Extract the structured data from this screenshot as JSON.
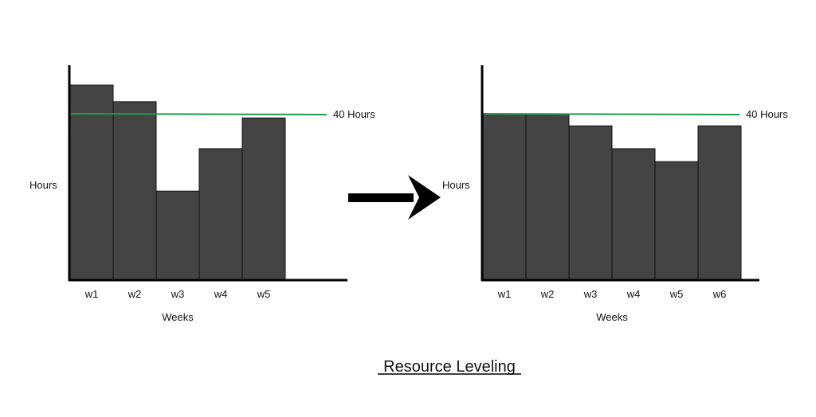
{
  "title": "Resource Leveling",
  "colors": {
    "bar": "#444444",
    "bar_stroke": "#111111",
    "limit_line": "#1f9a4f",
    "axis": "#000000"
  },
  "chart_data": [
    {
      "type": "bar",
      "title": "",
      "xlabel": "Weeks",
      "ylabel": "Hours",
      "categories": [
        "w1",
        "w2",
        "w3",
        "w4",
        "w5"
      ],
      "values": [
        46.9,
        42.9,
        21.4,
        31.6,
        39.0
      ],
      "ylim": [
        0,
        51
      ],
      "reference_line": {
        "value": 40,
        "label": "40 Hours"
      },
      "grid": false
    },
    {
      "type": "bar",
      "title": "",
      "xlabel": "Weeks",
      "ylabel": "Hours",
      "categories": [
        "w1",
        "w2",
        "w3",
        "w4",
        "w5",
        "w6"
      ],
      "values": [
        40,
        40,
        37.1,
        31.6,
        28.5,
        37.1
      ],
      "ylim": [
        0,
        51
      ],
      "reference_line": {
        "value": 40,
        "label": "40 Hours"
      },
      "grid": false
    }
  ],
  "arrow_icon": "right-arrow"
}
